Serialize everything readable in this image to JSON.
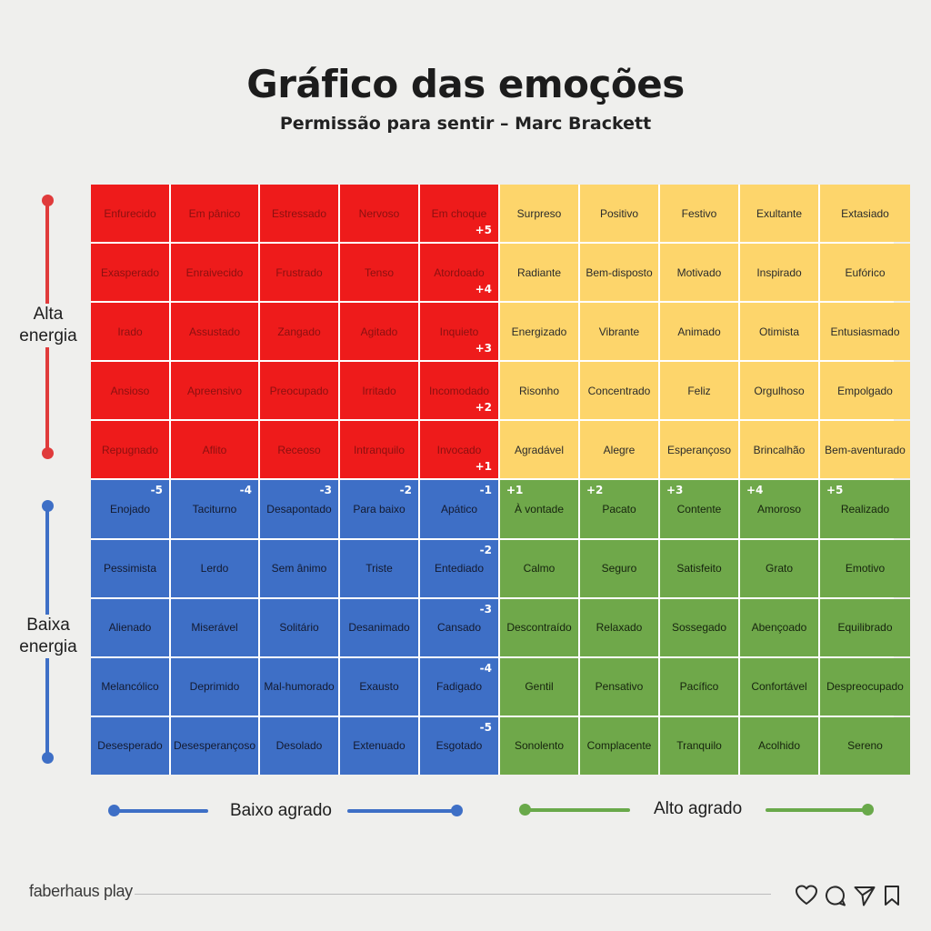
{
  "title": "Gráfico das emoções",
  "subtitle": "Permissão para sentir – Marc Brackett",
  "axes": {
    "high_energy": [
      "Alta",
      "energia"
    ],
    "low_energy": [
      "Baixa",
      "energia"
    ],
    "low_pleasantness": "Baixo agrado",
    "high_pleasantness": "Alto agrado"
  },
  "colors": {
    "red": "#ee1b1b",
    "yellow": "#fdd56b",
    "blue": "#3e6fc6",
    "green": "#6fa84a",
    "red_axis": "#e03b3b",
    "blue_axis": "#3e6fc6",
    "green_axis": "#69a94a"
  },
  "grid": {
    "rows": [
      [
        "Enfurecido",
        "Em pânico",
        "Estressado",
        "Nervoso",
        "Em choque",
        "Surpreso",
        "Positivo",
        "Festivo",
        "Exultante",
        "Extasiado"
      ],
      [
        "Exasperado",
        "Enraivecido",
        "Frustrado",
        "Tenso",
        "Atordoado",
        "Radiante",
        "Bem-disposto",
        "Motivado",
        "Inspirado",
        "Eufórico"
      ],
      [
        "Irado",
        "Assustado",
        "Zangado",
        "Agitado",
        "Inquieto",
        "Energizado",
        "Vibrante",
        "Animado",
        "Otimista",
        "Entusiasmado"
      ],
      [
        "Ansioso",
        "Apreensivo",
        "Preocupado",
        "Irritado",
        "Incomodado",
        "Risonho",
        "Concentrado",
        "Feliz",
        "Orgulhoso",
        "Empolgado"
      ],
      [
        "Repugnado",
        "Aflito",
        "Receoso",
        "Intranquilo",
        "Invocado",
        "Agradável",
        "Alegre",
        "Esperançoso",
        "Brincalhão",
        "Bem-aventurado"
      ],
      [
        "Enojado",
        "Taciturno",
        "Desapontado",
        "Para baixo",
        "Apático",
        "À vontade",
        "Pacato",
        "Contente",
        "Amoroso",
        "Realizado"
      ],
      [
        "Pessimista",
        "Lerdo",
        "Sem ânimo",
        "Triste",
        "Entediado",
        "Calmo",
        "Seguro",
        "Satisfeito",
        "Grato",
        "Emotivo"
      ],
      [
        "Alienado",
        "Miserável",
        "Solitário",
        "Desanimado",
        "Cansado",
        "Descontraído",
        "Relaxado",
        "Sossegado",
        "Abençoado",
        "Equilibrado"
      ],
      [
        "Melancólico",
        "Deprimido",
        "Mal-humorado",
        "Exausto",
        "Fadigado",
        "Gentil",
        "Pensativo",
        "Pacífico",
        "Confortável",
        "Despreocupado"
      ],
      [
        "Desesperado",
        "Desesperançoso",
        "Desolado",
        "Extenuado",
        "Esgotado",
        "Sonolento",
        "Complacente",
        "Tranquilo",
        "Acolhido",
        "Sereno"
      ]
    ],
    "energy_scale": [
      "+5",
      "+4",
      "+3",
      "+2",
      "+1",
      "-1",
      "-2",
      "-3",
      "-4",
      "-5"
    ],
    "pleasantness_scale": [
      "-5",
      "-4",
      "-3",
      "-2",
      "-1",
      "+1",
      "+2",
      "+3",
      "+4",
      "+5"
    ]
  },
  "footer": {
    "brand": "faberhaus play",
    "icons": [
      "heart-icon",
      "comment-icon",
      "send-icon",
      "bookmark-icon"
    ]
  }
}
